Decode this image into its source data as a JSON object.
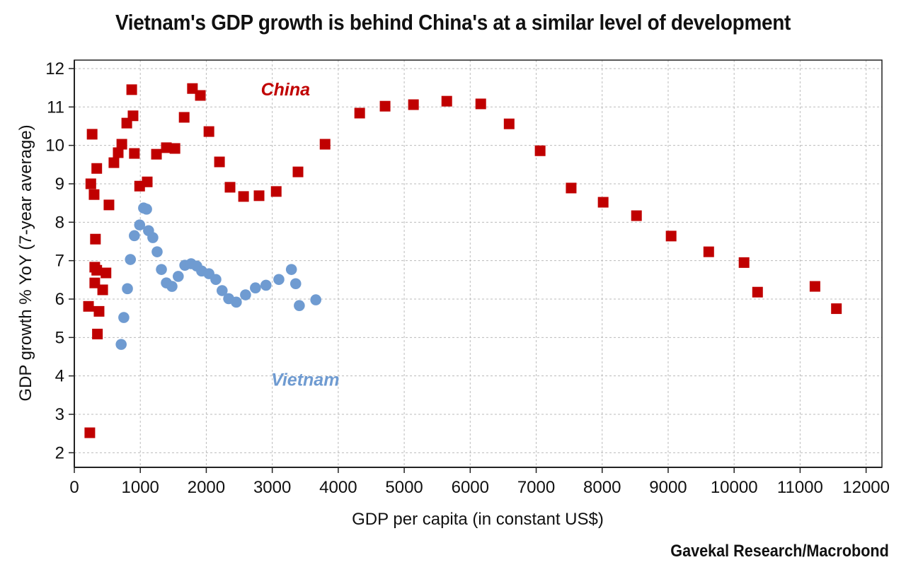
{
  "chart_data": {
    "type": "scatter",
    "title": "Vietnam's GDP growth is behind China's at a similar level of development",
    "xlabel": "GDP per capita (in constant US$)",
    "ylabel": "GDP growth % YoY (7-year average)",
    "source": "Gavekal Research/Macrobond",
    "xlim": [
      0,
      12240
    ],
    "ylim": [
      1.62,
      12.22
    ],
    "xticks": [
      0,
      1000,
      2000,
      3000,
      4000,
      5000,
      6000,
      7000,
      8000,
      9000,
      10000,
      11000,
      12000
    ],
    "yticks": [
      2,
      3,
      4,
      5,
      6,
      7,
      8,
      9,
      10,
      11,
      12
    ],
    "grid": true,
    "legend": "inline labels",
    "series": [
      {
        "name": "China",
        "label_position": [
          3200,
          11.3
        ],
        "marker": "square",
        "color": "#c00000",
        "points": [
          [
            270,
            10.29
          ],
          [
            250,
            9.0
          ],
          [
            300,
            8.72
          ],
          [
            340,
            9.4
          ],
          [
            320,
            7.56
          ],
          [
            310,
            6.83
          ],
          [
            340,
            6.75
          ],
          [
            310,
            6.42
          ],
          [
            430,
            6.24
          ],
          [
            480,
            6.68
          ],
          [
            215,
            5.81
          ],
          [
            375,
            5.68
          ],
          [
            350,
            5.09
          ],
          [
            235,
            2.52
          ],
          [
            525,
            8.45
          ],
          [
            600,
            9.55
          ],
          [
            665,
            9.81
          ],
          [
            720,
            10.03
          ],
          [
            795,
            10.58
          ],
          [
            870,
            11.45
          ],
          [
            890,
            10.77
          ],
          [
            910,
            9.79
          ],
          [
            990,
            8.94
          ],
          [
            1105,
            9.05
          ],
          [
            1245,
            9.77
          ],
          [
            1395,
            9.94
          ],
          [
            1525,
            9.92
          ],
          [
            1665,
            10.73
          ],
          [
            1790,
            11.48
          ],
          [
            1910,
            11.3
          ],
          [
            2040,
            10.36
          ],
          [
            2200,
            9.57
          ],
          [
            2360,
            8.91
          ],
          [
            2565,
            8.67
          ],
          [
            2800,
            8.69
          ],
          [
            3060,
            8.8
          ],
          [
            3390,
            9.31
          ],
          [
            3800,
            10.03
          ],
          [
            4325,
            10.84
          ],
          [
            4710,
            11.02
          ],
          [
            5140,
            11.06
          ],
          [
            5645,
            11.15
          ],
          [
            6160,
            11.08
          ],
          [
            6590,
            10.56
          ],
          [
            7060,
            9.86
          ],
          [
            7530,
            8.89
          ],
          [
            8015,
            8.52
          ],
          [
            8520,
            8.17
          ],
          [
            9045,
            7.64
          ],
          [
            9615,
            7.23
          ],
          [
            10150,
            6.95
          ],
          [
            10355,
            6.18
          ],
          [
            11225,
            6.33
          ],
          [
            11550,
            5.75
          ]
        ]
      },
      {
        "name": "Vietnam",
        "label_position": [
          3500,
          3.75
        ],
        "marker": "circle",
        "color": "#6f9bd1",
        "points": [
          [
            710,
            4.82
          ],
          [
            750,
            5.52
          ],
          [
            805,
            6.27
          ],
          [
            850,
            7.03
          ],
          [
            910,
            7.65
          ],
          [
            990,
            7.93
          ],
          [
            1050,
            8.37
          ],
          [
            1095,
            8.34
          ],
          [
            1125,
            7.78
          ],
          [
            1190,
            7.6
          ],
          [
            1255,
            7.23
          ],
          [
            1320,
            6.77
          ],
          [
            1395,
            6.42
          ],
          [
            1480,
            6.33
          ],
          [
            1575,
            6.59
          ],
          [
            1675,
            6.88
          ],
          [
            1770,
            6.92
          ],
          [
            1855,
            6.86
          ],
          [
            1930,
            6.73
          ],
          [
            2040,
            6.66
          ],
          [
            2145,
            6.51
          ],
          [
            2240,
            6.22
          ],
          [
            2340,
            6.01
          ],
          [
            2455,
            5.92
          ],
          [
            2595,
            6.11
          ],
          [
            2745,
            6.29
          ],
          [
            2905,
            6.36
          ],
          [
            3100,
            6.51
          ],
          [
            3290,
            6.77
          ],
          [
            3355,
            6.4
          ],
          [
            3410,
            5.83
          ],
          [
            3660,
            5.98
          ]
        ]
      }
    ]
  }
}
